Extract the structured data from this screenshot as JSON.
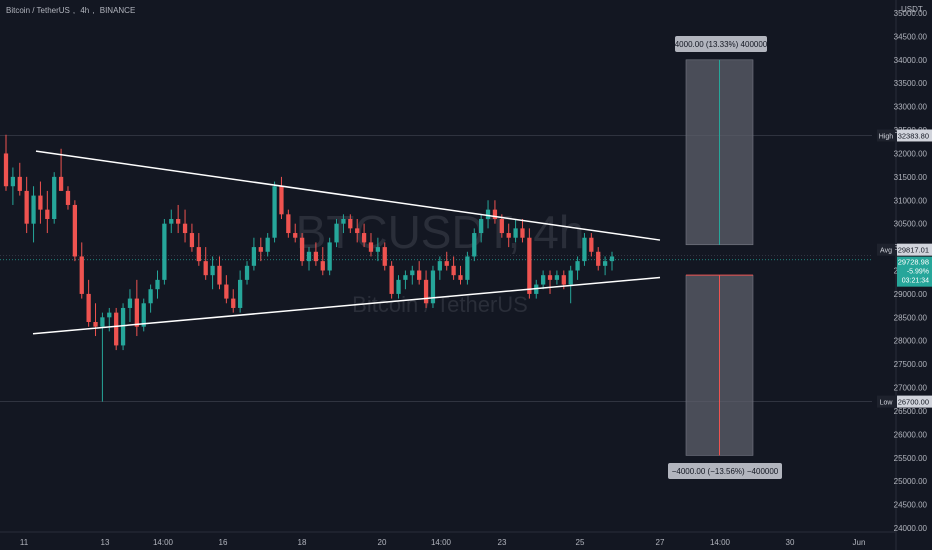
{
  "header": {
    "symbol": "Bitcoin / TetherUS",
    "interval": "4h",
    "exchange": "BINANCE",
    "currency": "USDT"
  },
  "watermark": {
    "ticker": "BTCUSDT, 4h",
    "name": "Bitcoin / TetherUS"
  },
  "colors": {
    "background": "#131722",
    "up": "#26a69a",
    "down": "#ef5350",
    "axis_text": "#b2b5be",
    "trendline": "#ffffff",
    "box_fill": "#5d606b",
    "label_bg": "#1e222d"
  },
  "chart_data": {
    "type": "candlestick",
    "x_ticks": [
      "11",
      "13",
      "14:00",
      "16",
      "18",
      "20",
      "14:00",
      "23",
      "25",
      "27",
      "14:00",
      "30",
      "Jun"
    ],
    "y_ticks": [
      24000,
      24500,
      25000,
      25500,
      26000,
      26500,
      27000,
      27500,
      28000,
      28500,
      29000,
      29500,
      30000,
      30500,
      31000,
      31500,
      32000,
      32500,
      33000,
      33500,
      34000,
      34500,
      35000
    ],
    "ylim": [
      23900,
      35400
    ],
    "price_labels": [
      {
        "tag": "High",
        "value": "32383.80"
      },
      {
        "tag": "Avg",
        "value": "29817.01"
      },
      {
        "tag": "",
        "value": "29728.98",
        "change": "-5.99%",
        "countdown": "03:21:34"
      },
      {
        "tag": "Low",
        "value": "26700.00"
      }
    ],
    "measure_up_label": "4000.00 (13.33%) 400000",
    "measure_down_label": "−4000.00 (−13.56%) −400000",
    "measure_up_range": [
      30050,
      34000
    ],
    "measure_down_range": [
      25550,
      29400
    ],
    "upper_trendline": [
      [
        32050
      ],
      [
        30150
      ]
    ],
    "lower_trendline": [
      [
        28150
      ],
      [
        29350
      ]
    ],
    "candles": [
      [
        32000,
        32400,
        31200,
        31300
      ],
      [
        31300,
        31700,
        30900,
        31500
      ],
      [
        31500,
        31800,
        31100,
        31200
      ],
      [
        31200,
        31500,
        30300,
        30500
      ],
      [
        30500,
        31300,
        30100,
        31100
      ],
      [
        31100,
        31400,
        30500,
        30800
      ],
      [
        30800,
        31200,
        30300,
        30600
      ],
      [
        30600,
        31600,
        30500,
        31500
      ],
      [
        31500,
        32100,
        31200,
        31200
      ],
      [
        31200,
        31300,
        30800,
        30900
      ],
      [
        30900,
        31000,
        29700,
        29800
      ],
      [
        29800,
        30100,
        28900,
        29000
      ],
      [
        29000,
        29300,
        28300,
        28400
      ],
      [
        28400,
        28800,
        28100,
        28300
      ],
      [
        28300,
        28600,
        26700,
        28500
      ],
      [
        28500,
        28700,
        28200,
        28600
      ],
      [
        28600,
        28700,
        27800,
        27900
      ],
      [
        27900,
        28800,
        27800,
        28700
      ],
      [
        28700,
        29100,
        28400,
        28900
      ],
      [
        28900,
        29300,
        28100,
        28300
      ],
      [
        28300,
        28900,
        28200,
        28800
      ],
      [
        28800,
        29200,
        28600,
        29100
      ],
      [
        29100,
        29500,
        28900,
        29300
      ],
      [
        29300,
        30600,
        29200,
        30500
      ],
      [
        30500,
        30800,
        30300,
        30600
      ],
      [
        30600,
        30900,
        30300,
        30500
      ],
      [
        30500,
        30800,
        30100,
        30300
      ],
      [
        30300,
        30500,
        29900,
        30000
      ],
      [
        30000,
        30300,
        29600,
        29700
      ],
      [
        29700,
        30000,
        29300,
        29400
      ],
      [
        29400,
        29800,
        29100,
        29600
      ],
      [
        29600,
        29800,
        29100,
        29200
      ],
      [
        29200,
        29400,
        28800,
        28900
      ],
      [
        28900,
        29100,
        28600,
        28700
      ],
      [
        28700,
        29500,
        28600,
        29300
      ],
      [
        29300,
        29700,
        29200,
        29600
      ],
      [
        29600,
        30200,
        29500,
        30000
      ],
      [
        30000,
        30200,
        29700,
        29900
      ],
      [
        29900,
        30300,
        29800,
        30200
      ],
      [
        30200,
        31400,
        30100,
        31300
      ],
      [
        31300,
        31500,
        30600,
        30700
      ],
      [
        30700,
        30800,
        30200,
        30300
      ],
      [
        30300,
        30500,
        30100,
        30200
      ],
      [
        30200,
        30300,
        29600,
        29700
      ],
      [
        29700,
        30000,
        29500,
        29900
      ],
      [
        29900,
        30100,
        29600,
        29700
      ],
      [
        29700,
        30000,
        29400,
        29500
      ],
      [
        29500,
        30200,
        29400,
        30100
      ],
      [
        30100,
        30600,
        30000,
        30500
      ],
      [
        30500,
        30700,
        30300,
        30600
      ],
      [
        30600,
        30700,
        30300,
        30400
      ],
      [
        30400,
        30600,
        30100,
        30300
      ],
      [
        30300,
        30500,
        30000,
        30100
      ],
      [
        30100,
        30300,
        29800,
        29900
      ],
      [
        29900,
        30200,
        29700,
        30000
      ],
      [
        30000,
        30100,
        29500,
        29600
      ],
      [
        29600,
        29700,
        28900,
        29000
      ],
      [
        29000,
        29400,
        28900,
        29300
      ],
      [
        29300,
        29500,
        29100,
        29400
      ],
      [
        29400,
        29600,
        29200,
        29500
      ],
      [
        29500,
        29700,
        29200,
        29300
      ],
      [
        29300,
        29500,
        28700,
        28800
      ],
      [
        28800,
        29600,
        28700,
        29500
      ],
      [
        29500,
        29800,
        29300,
        29700
      ],
      [
        29700,
        29900,
        29500,
        29600
      ],
      [
        29600,
        29800,
        29300,
        29400
      ],
      [
        29400,
        29600,
        29200,
        29300
      ],
      [
        29300,
        29900,
        29200,
        29800
      ],
      [
        29800,
        30400,
        29700,
        30300
      ],
      [
        30300,
        30700,
        30100,
        30600
      ],
      [
        30600,
        31000,
        30400,
        30800
      ],
      [
        30800,
        31000,
        30500,
        30600
      ],
      [
        30600,
        30700,
        30200,
        30300
      ],
      [
        30300,
        30500,
        30000,
        30200
      ],
      [
        30200,
        30600,
        30100,
        30400
      ],
      [
        30400,
        30600,
        30100,
        30200
      ],
      [
        30200,
        30400,
        28900,
        29000
      ],
      [
        29000,
        29300,
        28900,
        29200
      ],
      [
        29200,
        29500,
        29100,
        29400
      ],
      [
        29400,
        29500,
        29000,
        29300
      ],
      [
        29300,
        29500,
        29200,
        29400
      ],
      [
        29400,
        29500,
        29100,
        29200
      ],
      [
        29200,
        29600,
        28800,
        29500
      ],
      [
        29500,
        29800,
        29300,
        29700
      ],
      [
        29700,
        30300,
        29600,
        30200
      ],
      [
        30200,
        30300,
        29800,
        29900
      ],
      [
        29900,
        30000,
        29500,
        29600
      ],
      [
        29600,
        29800,
        29400,
        29700
      ],
      [
        29700,
        29900,
        29500,
        29800
      ]
    ]
  }
}
